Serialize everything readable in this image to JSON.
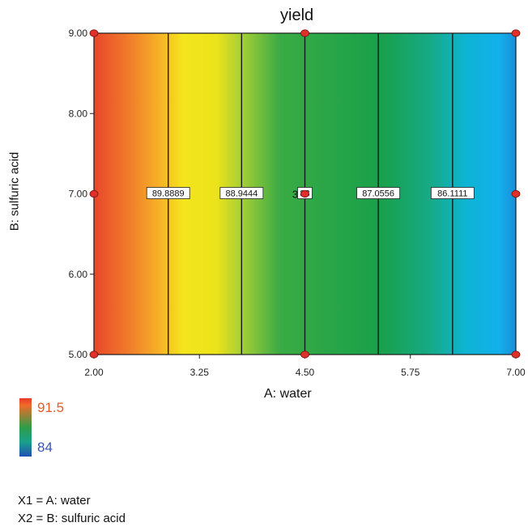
{
  "chart_data": {
    "type": "heatmap",
    "subtype": "contour",
    "title": "yield",
    "xlabel": "A: water",
    "ylabel": "B: sulfuric acid",
    "xlim": [
      2.0,
      7.0
    ],
    "ylim": [
      5.0,
      9.0
    ],
    "x_ticks": [
      "2.00",
      "3.25",
      "4.50",
      "5.75",
      "7.00"
    ],
    "y_ticks": [
      "5.00",
      "6.00",
      "7.00",
      "8.00",
      "9.00"
    ],
    "color_range": [
      84,
      91.5
    ],
    "legend": {
      "max_label": "91.5",
      "min_label": "84",
      "max_color": "#e55a28",
      "min_color": "#3a55b0"
    },
    "contours": [
      {
        "label": "89.8889",
        "x": 2.88
      },
      {
        "label": "88.9444",
        "x": 3.75
      },
      {
        "label": "88",
        "x": 4.5
      },
      {
        "label": "87.0556",
        "x": 5.37
      },
      {
        "label": "86.1111",
        "x": 6.25
      }
    ],
    "contour_label_y": 7.0,
    "design_points": [
      {
        "x": 2.0,
        "y": 9.0
      },
      {
        "x": 4.5,
        "y": 9.0
      },
      {
        "x": 7.0,
        "y": 9.0
      },
      {
        "x": 2.0,
        "y": 7.0
      },
      {
        "x": 4.5,
        "y": 7.0
      },
      {
        "x": 7.0,
        "y": 7.0
      },
      {
        "x": 2.0,
        "y": 5.0
      },
      {
        "x": 4.5,
        "y": 5.0
      },
      {
        "x": 7.0,
        "y": 5.0
      }
    ],
    "center_point_replicates": "3",
    "response_gradient": [
      {
        "x": 2.0,
        "color": "#e8472a"
      },
      {
        "x": 2.4,
        "color": "#f07a2a"
      },
      {
        "x": 2.8,
        "color": "#f7b526"
      },
      {
        "x": 3.05,
        "color": "#f4e51c"
      },
      {
        "x": 3.45,
        "color": "#ece31a"
      },
      {
        "x": 3.75,
        "color": "#a6cf35"
      },
      {
        "x": 4.2,
        "color": "#3aab44"
      },
      {
        "x": 5.4,
        "color": "#18a04a"
      },
      {
        "x": 6.0,
        "color": "#16aa88"
      },
      {
        "x": 6.4,
        "color": "#0eb4d2"
      },
      {
        "x": 6.8,
        "color": "#12b0ec"
      },
      {
        "x": 7.0,
        "color": "#1a8ed8"
      }
    ]
  },
  "factors": {
    "x1": "X1 = A: water",
    "x2": "X2 = B: sulfuric acid"
  }
}
